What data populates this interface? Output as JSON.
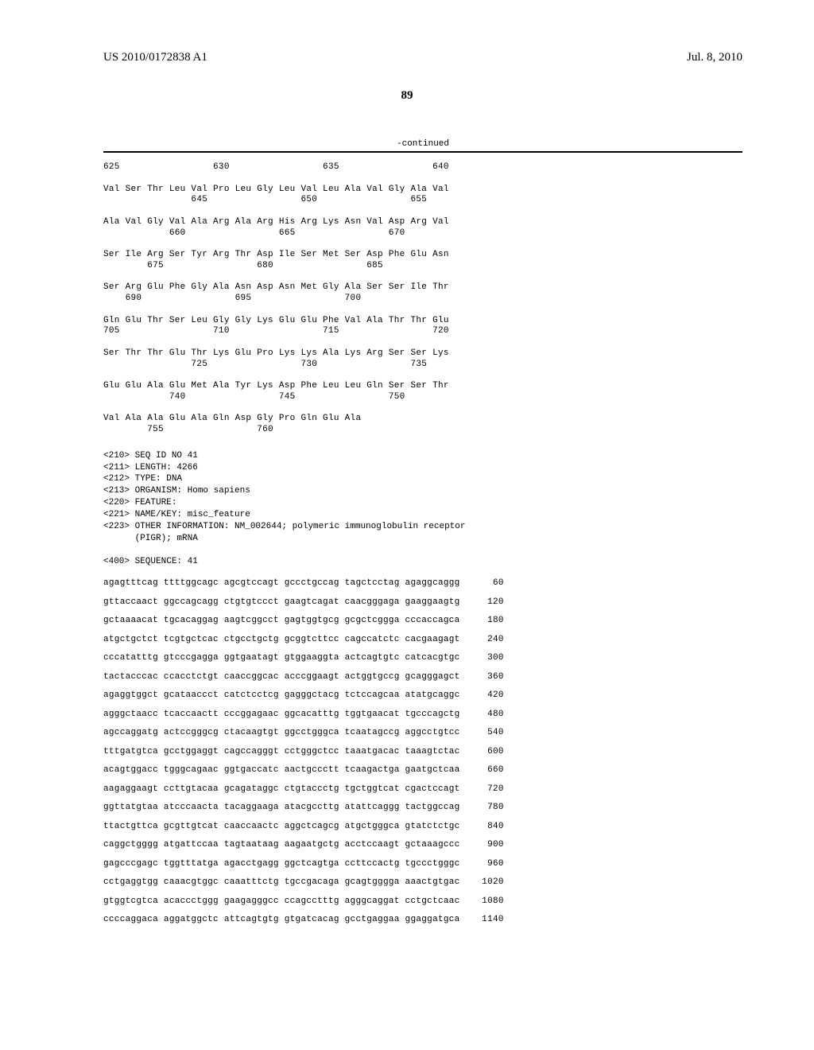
{
  "header": {
    "publication": "US 2010/0172838 A1",
    "date": "Jul. 8, 2010",
    "page": "89"
  },
  "continued": "-continued",
  "protein_seq": {
    "lines": [
      {
        "text": "625                 630                 635                 640",
        "type": "num"
      },
      {
        "text": "Val Ser Thr Leu Val Pro Leu Gly Leu Val Leu Ala Val Gly Ala Val",
        "type": "aa"
      },
      {
        "text": "                645                 650                 655",
        "type": "num"
      },
      {
        "text": "Ala Val Gly Val Ala Arg Ala Arg His Arg Lys Asn Val Asp Arg Val",
        "type": "aa"
      },
      {
        "text": "            660                 665                 670",
        "type": "num"
      },
      {
        "text": "Ser Ile Arg Ser Tyr Arg Thr Asp Ile Ser Met Ser Asp Phe Glu Asn",
        "type": "aa"
      },
      {
        "text": "        675                 680                 685",
        "type": "num"
      },
      {
        "text": "Ser Arg Glu Phe Gly Ala Asn Asp Asn Met Gly Ala Ser Ser Ile Thr",
        "type": "aa"
      },
      {
        "text": "    690                 695                 700",
        "type": "num"
      },
      {
        "text": "Gln Glu Thr Ser Leu Gly Gly Lys Glu Glu Phe Val Ala Thr Thr Glu",
        "type": "aa"
      },
      {
        "text": "705                 710                 715                 720",
        "type": "num"
      },
      {
        "text": "Ser Thr Thr Glu Thr Lys Glu Pro Lys Lys Ala Lys Arg Ser Ser Lys",
        "type": "aa"
      },
      {
        "text": "                725                 730                 735",
        "type": "num"
      },
      {
        "text": "Glu Glu Ala Glu Met Ala Tyr Lys Asp Phe Leu Leu Gln Ser Ser Thr",
        "type": "aa"
      },
      {
        "text": "            740                 745                 750",
        "type": "num"
      },
      {
        "text": "Val Ala Ala Glu Ala Gln Asp Gly Pro Gln Glu Ala",
        "type": "aa"
      },
      {
        "text": "        755                 760",
        "type": "num"
      }
    ]
  },
  "metadata": {
    "lines": [
      "<210> SEQ ID NO 41",
      "<211> LENGTH: 4266",
      "<212> TYPE: DNA",
      "<213> ORGANISM: Homo sapiens",
      "<220> FEATURE:",
      "<221> NAME/KEY: misc_feature",
      "<223> OTHER INFORMATION: NM_002644; polymeric immunoglobulin receptor",
      "      (PIGR); mRNA",
      "",
      "<400> SEQUENCE: 41"
    ]
  },
  "dna_seq": {
    "rows": [
      {
        "seq": "agagtttcag ttttggcagc agcgtccagt gccctgccag tagctcctag agaggcaggg",
        "pos": "60"
      },
      {
        "seq": "gttaccaact ggccagcagg ctgtgtccct gaagtcagat caacgggaga gaaggaagtg",
        "pos": "120"
      },
      {
        "seq": "gctaaaacat tgcacaggag aagtcggcct gagtggtgcg gcgctcggga cccaccagca",
        "pos": "180"
      },
      {
        "seq": "atgctgctct tcgtgctcac ctgcctgctg gcggtcttcc cagccatctc cacgaagagt",
        "pos": "240"
      },
      {
        "seq": "cccatatttg gtcccgagga ggtgaatagt gtggaaggta actcagtgtc catcacgtgc",
        "pos": "300"
      },
      {
        "seq": "tactacccac ccacctctgt caaccggcac acccggaagt actggtgccg gcagggagct",
        "pos": "360"
      },
      {
        "seq": "agaggtggct gcataaccct catctcctcg gagggctacg tctccagcaa atatgcaggc",
        "pos": "420"
      },
      {
        "seq": "agggctaacc tcaccaactt cccggagaac ggcacatttg tggtgaacat tgcccagctg",
        "pos": "480"
      },
      {
        "seq": "agccaggatg actccgggcg ctacaagtgt ggcctgggca tcaatagccg aggcctgtcc",
        "pos": "540"
      },
      {
        "seq": "tttgatgtca gcctggaggt cagccagggt cctgggctcc taaatgacac taaagtctac",
        "pos": "600"
      },
      {
        "seq": "acagtggacc tgggcagaac ggtgaccatc aactgccctt tcaagactga gaatgctcaa",
        "pos": "660"
      },
      {
        "seq": "aagaggaagt ccttgtacaa gcagataggc ctgtaccctg tgctggtcat cgactccagt",
        "pos": "720"
      },
      {
        "seq": "ggttatgtaa atcccaacta tacaggaaga atacgccttg atattcaggg tactggccag",
        "pos": "780"
      },
      {
        "seq": "ttactgttca gcgttgtcat caaccaactc aggctcagcg atgctgggca gtatctctgc",
        "pos": "840"
      },
      {
        "seq": "caggctgggg atgattccaa tagtaataag aagaatgctg acctccaagt gctaaagccc",
        "pos": "900"
      },
      {
        "seq": "gagcccgagc tggtttatga agacctgagg ggctcagtga ccttccactg tgccctgggc",
        "pos": "960"
      },
      {
        "seq": "cctgaggtgg caaacgtggc caaatttctg tgccgacaga gcagtgggga aaactgtgac",
        "pos": "1020"
      },
      {
        "seq": "gtggtcgtca acaccctggg gaagagggcc ccagcctttg agggcaggat cctgctcaac",
        "pos": "1080"
      },
      {
        "seq": "ccccaggaca aggatggctc attcagtgtg gtgatcacag gcctgaggaa ggaggatgca",
        "pos": "1140"
      }
    ]
  }
}
